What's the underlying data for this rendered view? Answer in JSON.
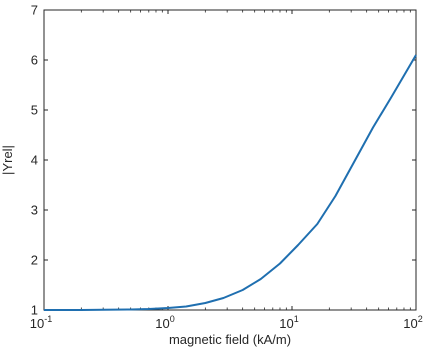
{
  "chart_data": {
    "type": "line",
    "title": "",
    "xlabel": "magnetic field (kA/m)",
    "ylabel": "|Yrel|",
    "x_scale": "log",
    "xlim": [
      0.1,
      100
    ],
    "ylim": [
      1,
      7
    ],
    "grid": false,
    "x_ticks": [
      {
        "value": 0.1,
        "base": "10",
        "exp": "-1"
      },
      {
        "value": 1,
        "base": "10",
        "exp": "0"
      },
      {
        "value": 10,
        "base": "10",
        "exp": "1"
      },
      {
        "value": 100,
        "base": "10",
        "exp": "2"
      }
    ],
    "y_ticks": [
      1,
      2,
      3,
      4,
      5,
      6,
      7
    ],
    "colors": {
      "line": "#1f6fb0",
      "axes": "#262626"
    },
    "series": [
      {
        "x": [
          0.1,
          0.2,
          0.3,
          0.5,
          0.7,
          1.0,
          1.4,
          2.0,
          2.8,
          4.0,
          5.6,
          8.0,
          11.2,
          16.0,
          22.4,
          32.0,
          45.0,
          63.0,
          100.0
        ],
        "y": [
          1.0,
          1.0,
          1.005,
          1.01,
          1.02,
          1.04,
          1.07,
          1.14,
          1.24,
          1.4,
          1.62,
          1.93,
          2.3,
          2.72,
          3.28,
          3.98,
          4.65,
          5.25,
          6.1
        ]
      }
    ]
  }
}
